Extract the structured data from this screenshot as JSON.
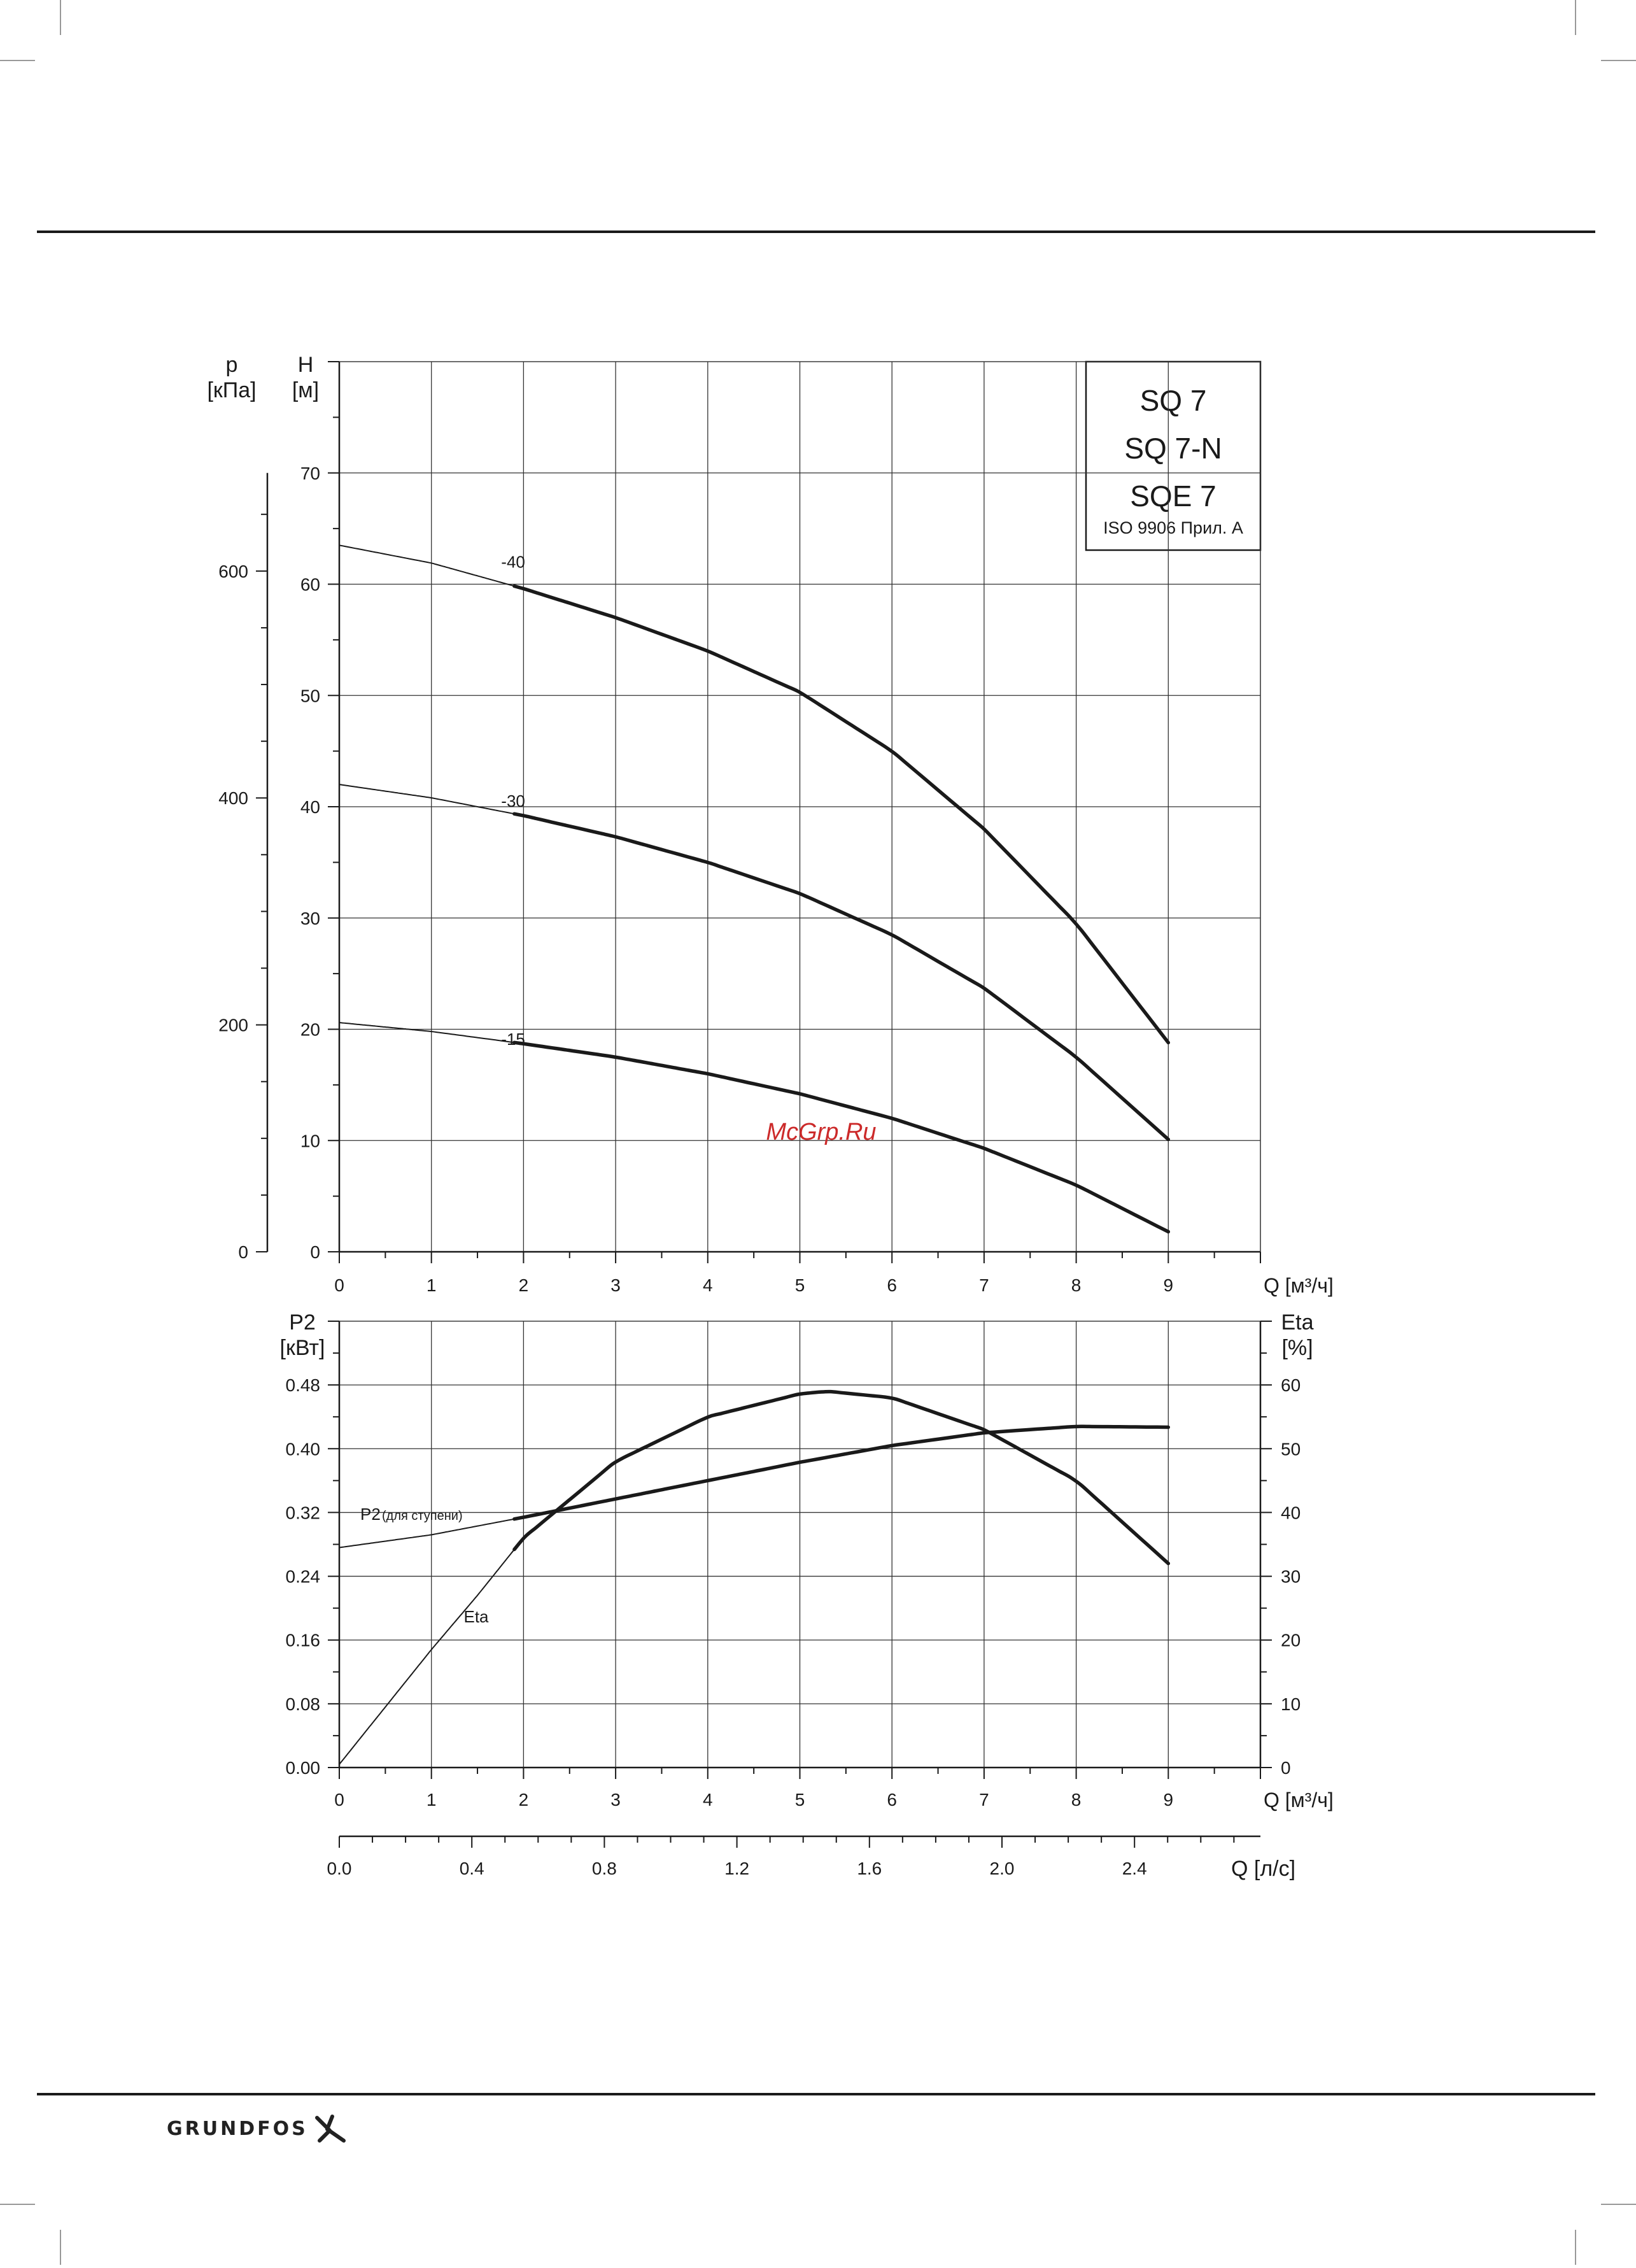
{
  "brand": {
    "name": "GRUNDFOS"
  },
  "watermark": "McGrp.Ru",
  "legend_box": {
    "lines": [
      "SQ 7",
      "SQ 7-N",
      "SQE 7"
    ],
    "standard": "ISO 9906 Прил. A"
  },
  "colors": {
    "line": "#1a1a1a",
    "grid": "#333333",
    "watermark": "#cc2a2a"
  },
  "chart_data": [
    {
      "type": "line",
      "xlabel": "Q [м³/ч]",
      "xlim": [
        0,
        10
      ],
      "x_ticks": [
        "0",
        "1",
        "2",
        "3",
        "4",
        "5",
        "6",
        "7",
        "8",
        "9"
      ],
      "ylabel_left": {
        "symbol": "p",
        "unit": "[кПа]",
        "ticks": [
          "0",
          "200",
          "400",
          "600"
        ],
        "values": [
          0,
          200,
          400,
          600
        ]
      },
      "ylabel": {
        "symbol": "H",
        "unit": "[м]",
        "ticks": [
          "0",
          "10",
          "20",
          "30",
          "40",
          "50",
          "60",
          "70"
        ]
      },
      "ylim": [
        0,
        80
      ],
      "grid": true,
      "series": [
        {
          "name": "-40",
          "x": [
            0,
            1,
            2,
            3,
            4,
            5,
            6,
            7,
            8,
            9
          ],
          "y": [
            63.5,
            61.9,
            59.6,
            57.0,
            54.0,
            50.3,
            45.0,
            38.0,
            29.5,
            18.8
          ],
          "bold_from": 1.9
        },
        {
          "name": "-30",
          "x": [
            0,
            1,
            2,
            3,
            4,
            5,
            6,
            7,
            8,
            9
          ],
          "y": [
            42.0,
            40.8,
            39.2,
            37.3,
            35.0,
            32.2,
            28.5,
            23.7,
            17.5,
            10.1
          ],
          "bold_from": 1.9
        },
        {
          "name": "-15",
          "x": [
            0,
            1,
            2,
            3,
            4,
            5,
            6,
            7,
            8,
            9
          ],
          "y": [
            20.6,
            19.8,
            18.7,
            17.5,
            16.0,
            14.2,
            12.0,
            9.3,
            6.0,
            1.8
          ],
          "bold_from": 1.9
        }
      ]
    },
    {
      "type": "line",
      "xlabel": "Q [м³/ч]",
      "xlim": [
        0,
        10
      ],
      "x_ticks": [
        "0",
        "1",
        "2",
        "3",
        "4",
        "5",
        "6",
        "7",
        "8",
        "9"
      ],
      "ylabel": {
        "symbol": "P2",
        "unit": "[кВт]",
        "ticks": [
          "0.00",
          "0.08",
          "0.16",
          "0.24",
          "0.32",
          "0.40",
          "0.48"
        ]
      },
      "ylim": [
        0,
        0.56
      ],
      "ylabel_right": {
        "symbol": "Eta",
        "unit": "[%]",
        "ticks": [
          "0",
          "10",
          "20",
          "30",
          "40",
          "50",
          "60"
        ]
      },
      "ylim_right": [
        0,
        70
      ],
      "grid": true,
      "series": [
        {
          "name": "P2",
          "label": "P2",
          "label_small": "(для ступени)",
          "axis": "left",
          "x": [
            0,
            1,
            2,
            3,
            4,
            5,
            6,
            7,
            8,
            9
          ],
          "y": [
            0.276,
            0.292,
            0.314,
            0.337,
            0.36,
            0.383,
            0.404,
            0.42,
            0.428,
            0.427
          ],
          "bold_from": 1.9
        },
        {
          "name": "Eta",
          "axis": "right",
          "x": [
            0,
            0.5,
            1,
            1.5,
            2,
            3,
            4,
            5,
            5.3,
            6,
            7,
            8,
            9
          ],
          "y": [
            0.5,
            9.5,
            18.5,
            27.0,
            36.0,
            48.0,
            55.0,
            58.6,
            59.0,
            58.0,
            53.0,
            45.0,
            32.0
          ],
          "bold_from": 1.9
        }
      ]
    },
    {
      "type": "axis",
      "xlabel": "Q [л/с]",
      "xlim": [
        0,
        2.78
      ],
      "x_ticks": [
        "0.0",
        "0.4",
        "0.8",
        "1.2",
        "1.6",
        "2.0",
        "2.4"
      ],
      "x_values": [
        0,
        0.4,
        0.8,
        1.2,
        1.6,
        2.0,
        2.4
      ]
    }
  ]
}
